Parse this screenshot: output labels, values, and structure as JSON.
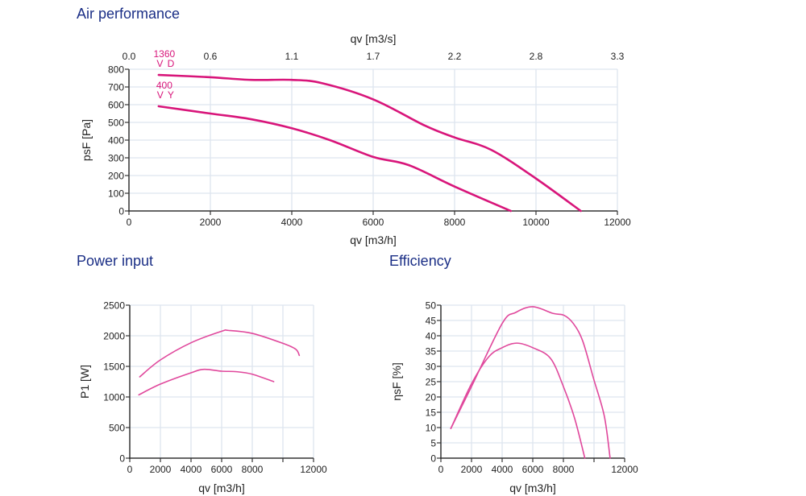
{
  "titles": {
    "air": "Air performance",
    "power": "Power input",
    "efficiency": "Efficiency"
  },
  "colors": {
    "title": "#1b2f86",
    "curve_air": "#d8157a",
    "curve_small": "#e0489c",
    "grid": "#dde5ef",
    "axis": "#333333"
  },
  "chart_data": [
    {
      "id": "air",
      "type": "line",
      "title": "Air performance",
      "xlabel": "qv [m3/h]",
      "ylabel": "psF [Pa]",
      "x2label": "qv [m3/s]",
      "xlim": [
        0,
        12000
      ],
      "ylim": [
        0,
        800
      ],
      "xticks": [
        0,
        2000,
        4000,
        6000,
        8000,
        10000,
        12000
      ],
      "xtick_labels": [
        "0",
        "2000",
        "4000",
        "6000",
        "8000",
        "10000",
        "12000"
      ],
      "yticks": [
        0,
        100,
        200,
        300,
        400,
        500,
        600,
        700,
        800
      ],
      "ytick_labels": [
        "0",
        "100",
        "200",
        "300",
        "400",
        "500",
        "600",
        "700",
        "800"
      ],
      "x2ticks": [
        0,
        2000,
        4000,
        6000,
        8000,
        10000,
        12000
      ],
      "x2tick_labels": [
        "0.0",
        "0.6",
        "1.1",
        "1.7",
        "2.2",
        "2.8",
        "3.3"
      ],
      "grid": true,
      "series": [
        {
          "name": "1360 V D",
          "label_line1": "1360",
          "label_line2": "V D",
          "x": [
            730,
            2000,
            3000,
            4000,
            4750,
            6000,
            7270,
            8000,
            8900,
            10000,
            11100
          ],
          "y": [
            768,
            755,
            740,
            740,
            721,
            630,
            482,
            415,
            345,
            183,
            0
          ]
        },
        {
          "name": "400 V Y",
          "label_line1": "400",
          "label_line2": "V Y",
          "x": [
            730,
            2000,
            3000,
            4000,
            4950,
            6000,
            6870,
            8000,
            9380
          ],
          "y": [
            591,
            550,
            518,
            467,
            399,
            305,
            259,
            138,
            0
          ]
        }
      ]
    },
    {
      "id": "power",
      "type": "line",
      "title": "Power input",
      "xlabel": "qv [m3/h]",
      "ylabel": "P1 [W]",
      "xlim": [
        0,
        12000
      ],
      "ylim": [
        0,
        2500
      ],
      "xticks": [
        0,
        2000,
        4000,
        6000,
        8000,
        10000,
        12000
      ],
      "xtick_labels": [
        "0",
        "2000",
        "4000",
        "6000",
        "8000",
        "",
        "12000"
      ],
      "yticks": [
        0,
        500,
        1000,
        1500,
        2000,
        2500
      ],
      "ytick_labels": [
        "0",
        "500",
        "1000",
        "1500",
        "2000",
        "2500"
      ],
      "grid": true,
      "series": [
        {
          "name": "1360 V D",
          "x": [
            650,
            2000,
            4000,
            6000,
            6450,
            8000,
            10000,
            10840,
            11070
          ],
          "y": [
            1329,
            1605,
            1886,
            2074,
            2087,
            2039,
            1876,
            1780,
            1679
          ]
        },
        {
          "name": "400 V Y",
          "x": [
            590,
            2000,
            4000,
            4860,
            6000,
            6970,
            8000,
            9400
          ],
          "y": [
            1034,
            1210,
            1395,
            1451,
            1421,
            1413,
            1372,
            1250
          ]
        }
      ]
    },
    {
      "id": "efficiency",
      "type": "line",
      "title": "Efficiency",
      "xlabel": "qv [m3/h]",
      "ylabel": "ηsF [%]",
      "xlim": [
        0,
        12000
      ],
      "ylim": [
        0,
        50
      ],
      "xticks": [
        0,
        2000,
        4000,
        6000,
        8000,
        10000,
        12000
      ],
      "xtick_labels": [
        "0",
        "2000",
        "4000",
        "6000",
        "8000",
        "",
        "12000"
      ],
      "yticks": [
        0,
        5,
        10,
        15,
        20,
        25,
        30,
        35,
        40,
        45,
        50
      ],
      "ytick_labels": [
        "0",
        "5",
        "10",
        "15",
        "20",
        "25",
        "30",
        "35",
        "40",
        "45",
        "50"
      ],
      "grid": true,
      "series": [
        {
          "name": "1360 V D",
          "x": [
            650,
            2000,
            4000,
            4880,
            6000,
            7330,
            8040,
            8650,
            9260,
            9970,
            10670,
            11050
          ],
          "y": [
            9.7,
            23.4,
            44,
            47.6,
            49.5,
            47.3,
            46.7,
            44,
            38.3,
            26,
            13.8,
            0
          ]
        },
        {
          "name": "400 V Y",
          "x": [
            650,
            2000,
            3120,
            4000,
            4960,
            6000,
            7160,
            8000,
            8740,
            9400
          ],
          "y": [
            9.7,
            24.3,
            33.1,
            36.1,
            37.6,
            36.1,
            32.6,
            23.4,
            12.9,
            0
          ]
        }
      ]
    }
  ]
}
